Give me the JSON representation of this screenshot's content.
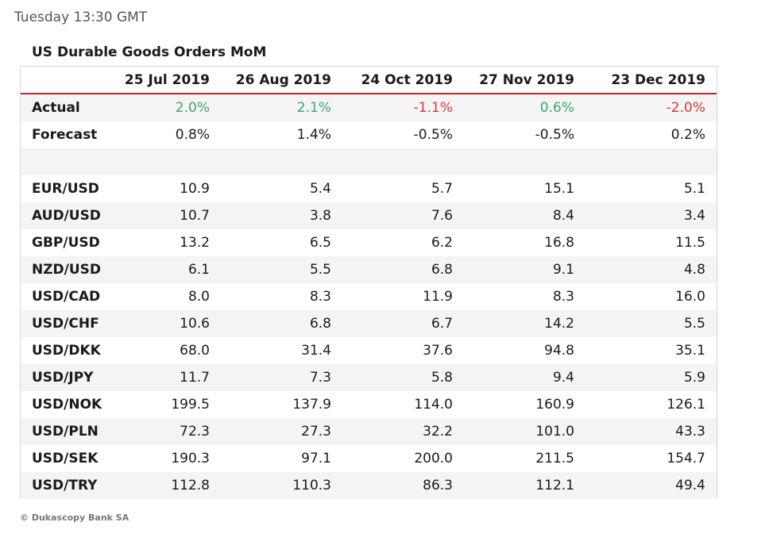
{
  "header": {
    "timestamp": "Tuesday 13:30 GMT"
  },
  "footer": {
    "copyright": "© Dukascopy Bank SA"
  },
  "colors": {
    "positive": "#3da66e",
    "negative": "#d9363e",
    "header_rule": "#c0282d",
    "band": "#f4f4f4"
  },
  "chart_data": {
    "type": "table",
    "title": "US Durable Goods Orders MoM",
    "columns": [
      "25 Jul 2019",
      "26 Aug 2019",
      "24 Oct 2019",
      "27 Nov 2019",
      "23 Dec 2019"
    ],
    "actual": {
      "label": "Actual",
      "values": [
        "2.0%",
        "2.1%",
        "-1.1%",
        "0.6%",
        "-2.0%"
      ]
    },
    "forecast": {
      "label": "Forecast",
      "values": [
        "0.8%",
        "1.4%",
        "-0.5%",
        "-0.5%",
        "0.2%"
      ]
    },
    "rows": [
      {
        "label": "EUR/USD",
        "values": [
          "10.9",
          "5.4",
          "5.7",
          "15.1",
          "5.1"
        ]
      },
      {
        "label": "AUD/USD",
        "values": [
          "10.7",
          "3.8",
          "7.6",
          "8.4",
          "3.4"
        ]
      },
      {
        "label": "GBP/USD",
        "values": [
          "13.2",
          "6.5",
          "6.2",
          "16.8",
          "11.5"
        ]
      },
      {
        "label": "NZD/USD",
        "values": [
          "6.1",
          "5.5",
          "6.8",
          "9.1",
          "4.8"
        ]
      },
      {
        "label": "USD/CAD",
        "values": [
          "8.0",
          "8.3",
          "11.9",
          "8.3",
          "16.0"
        ]
      },
      {
        "label": "USD/CHF",
        "values": [
          "10.6",
          "6.8",
          "6.7",
          "14.2",
          "5.5"
        ]
      },
      {
        "label": "USD/DKK",
        "values": [
          "68.0",
          "31.4",
          "37.6",
          "94.8",
          "35.1"
        ]
      },
      {
        "label": "USD/JPY",
        "values": [
          "11.7",
          "7.3",
          "5.8",
          "9.4",
          "5.9"
        ]
      },
      {
        "label": "USD/NOK",
        "values": [
          "199.5",
          "137.9",
          "114.0",
          "160.9",
          "126.1"
        ]
      },
      {
        "label": "USD/PLN",
        "values": [
          "72.3",
          "27.3",
          "32.2",
          "101.0",
          "43.3"
        ]
      },
      {
        "label": "USD/SEK",
        "values": [
          "190.3",
          "97.1",
          "200.0",
          "211.5",
          "154.7"
        ]
      },
      {
        "label": "USD/TRY",
        "values": [
          "112.8",
          "110.3",
          "86.3",
          "112.1",
          "49.4"
        ]
      }
    ]
  }
}
